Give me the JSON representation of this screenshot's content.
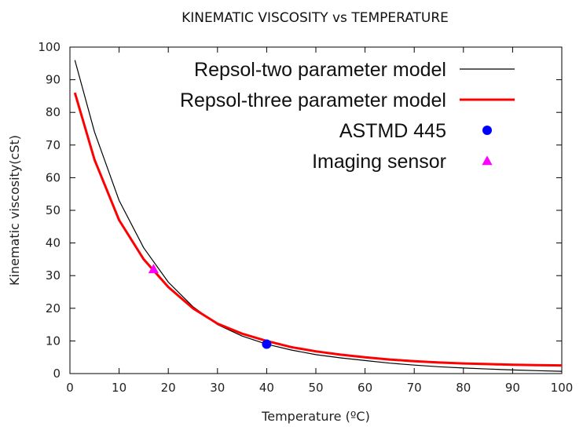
{
  "chart_data": {
    "type": "line",
    "title": "KINEMATIC VISCOSITY vs TEMPERATURE",
    "xlabel": "Temperature (ºC)",
    "ylabel": "Kinematic viscosity(cSt)",
    "xlim": [
      0,
      100
    ],
    "ylim": [
      0,
      100
    ],
    "xticks": [
      0,
      10,
      20,
      30,
      40,
      50,
      60,
      70,
      80,
      90,
      100
    ],
    "yticks": [
      0,
      10,
      20,
      30,
      40,
      50,
      60,
      70,
      80,
      90,
      100
    ],
    "grid": false,
    "legend_position": "top-right",
    "series": [
      {
        "name": "Repsol-two parameter model",
        "kind": "line",
        "color": "#000000",
        "x": [
          1,
          5,
          10,
          15,
          20,
          25,
          30,
          35,
          40,
          45,
          50,
          55,
          60,
          65,
          70,
          75,
          80,
          85,
          90,
          95,
          100
        ],
        "y": [
          96,
          74,
          53,
          38.5,
          28,
          20.5,
          15,
          11.5,
          9,
          7.2,
          5.8,
          4.8,
          4,
          3.2,
          2.6,
          2.1,
          1.7,
          1.4,
          1.1,
          0.9,
          0.7
        ]
      },
      {
        "name": "Repsol-three parameter model",
        "kind": "line",
        "color": "#ff0000",
        "x": [
          1,
          5,
          10,
          15,
          20,
          25,
          30,
          35,
          40,
          45,
          50,
          55,
          60,
          65,
          70,
          75,
          80,
          85,
          90,
          95,
          100
        ],
        "y": [
          86,
          65.5,
          47,
          35,
          26.5,
          20,
          15.3,
          12.2,
          10,
          8.1,
          6.8,
          5.8,
          5,
          4.3,
          3.8,
          3.4,
          3.1,
          2.9,
          2.7,
          2.6,
          2.5
        ]
      },
      {
        "name": "ASTMD 445",
        "kind": "point",
        "marker": "circle",
        "color": "#0000ff",
        "x": [
          40
        ],
        "y": [
          9
        ]
      },
      {
        "name": "Imaging sensor",
        "kind": "point",
        "marker": "triangle",
        "color": "#ff00ff",
        "x": [
          17
        ],
        "y": [
          32
        ]
      }
    ]
  }
}
